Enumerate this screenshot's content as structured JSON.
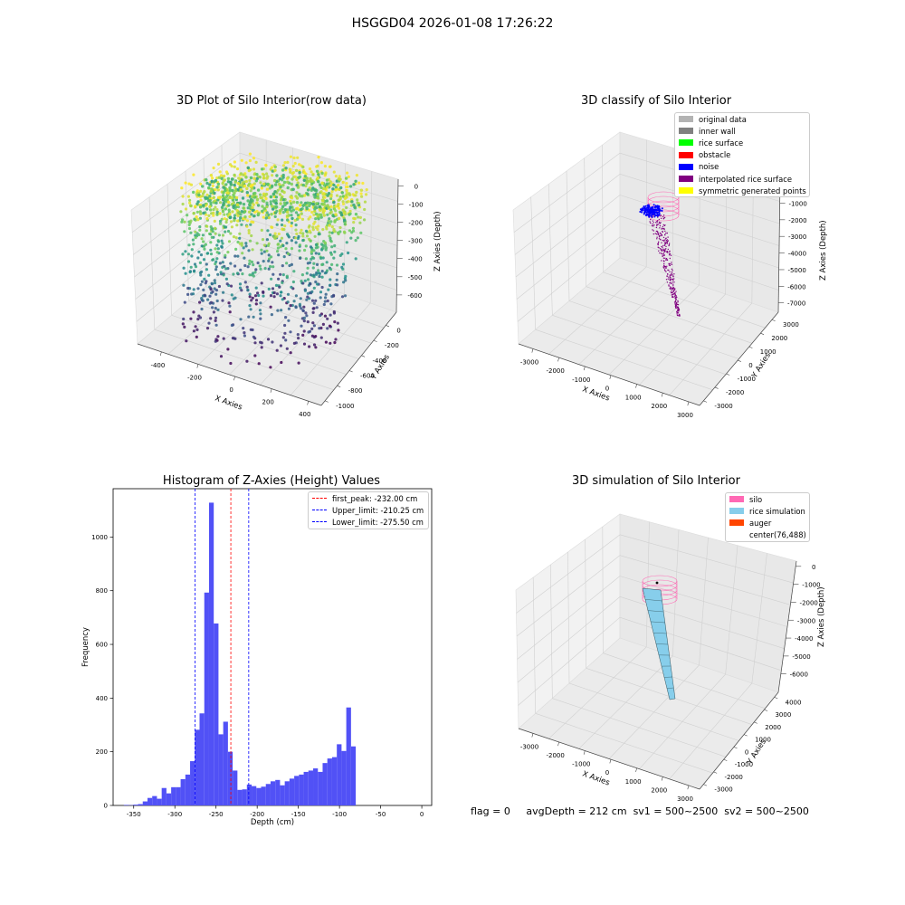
{
  "figure": {
    "suptitle": "HSGGD04 2026-01-08 17:26:22",
    "footer": {
      "flag": "flag = 0",
      "avg_depth": "avgDepth = 212 cm",
      "sv1": "sv1 = 500~2500",
      "sv2": "sv2 = 500~2500"
    }
  },
  "colors": {
    "histogram_bar": "#5151f6",
    "first_peak": "#ff0000",
    "limits": "#0000ff",
    "silo": "#ff69b4",
    "rice_simulation": "#87ceeb",
    "auger": "#ff4500",
    "original_data": "#b3b3b3",
    "inner_wall": "#808080",
    "rice_surface": "#00ff00",
    "obstacle": "#ff0000",
    "noise": "#0000ff",
    "interpolated_rice_surface": "#800080",
    "symmetric_generated_points": "#ffff00"
  },
  "chart_data": [
    {
      "type": "scatter",
      "title": "3D Plot of Silo Interior(row data)",
      "xlabel": "X Axies",
      "ylabel": "Y Axies",
      "zlabel": "Z Axies (Depth)",
      "x_ticks": [
        "-400",
        "-200",
        "0",
        "200",
        "400"
      ],
      "y_ticks": [
        "-1000",
        "-800",
        "-600",
        "-400",
        "-200",
        "0"
      ],
      "z_ticks": [
        "0",
        "-100",
        "-200",
        "-300",
        "-400",
        "-500",
        "-600"
      ],
      "colormap": "viridis"
    },
    {
      "type": "scatter",
      "title": "3D classify of Silo Interior",
      "xlabel": "X Axies",
      "ylabel": "Y Axies",
      "zlabel": "Z Axies (Depth)",
      "x_ticks": [
        "-3000",
        "-2000",
        "-1000",
        "0",
        "1000",
        "2000",
        "3000"
      ],
      "y_ticks": [
        "-3000",
        "-2000",
        "-1000",
        "0",
        "1000",
        "2000",
        "3000"
      ],
      "z_ticks": [
        "-1000",
        "-2000",
        "-3000",
        "-4000",
        "-5000",
        "-6000",
        "-7000"
      ],
      "legend": [
        {
          "label": "original data",
          "color": "#b3b3b3"
        },
        {
          "label": "inner wall",
          "color": "#808080"
        },
        {
          "label": "rice surface",
          "color": "#00ff00"
        },
        {
          "label": "obstacle",
          "color": "#ff0000"
        },
        {
          "label": "noise",
          "color": "#0000ff"
        },
        {
          "label": "interpolated rice surface",
          "color": "#800080"
        },
        {
          "label": "symmetric generated points",
          "color": "#ffff00"
        }
      ]
    },
    {
      "type": "bar",
      "title": "Histogram of Z-Axies (Height) Values",
      "xlabel": "Depth (cm)",
      "ylabel": "Frequency",
      "xlim": [
        -375,
        12
      ],
      "ylim": [
        0,
        1180
      ],
      "x_ticks": [
        -350,
        -300,
        -250,
        -200,
        -150,
        -100,
        -50,
        0
      ],
      "y_ticks": [
        0,
        200,
        400,
        600,
        800,
        1000
      ],
      "bin_width": 5.75,
      "bin_start": -362,
      "values": [
        2,
        1,
        3,
        5,
        15,
        28,
        35,
        25,
        65,
        45,
        68,
        68,
        98,
        115,
        165,
        282,
        343,
        793,
        1128,
        678,
        265,
        312,
        200,
        130,
        58,
        60,
        78,
        72,
        65,
        70,
        80,
        90,
        95,
        75,
        90,
        100,
        110,
        115,
        125,
        130,
        138,
        125,
        158,
        175,
        180,
        228,
        203,
        365,
        220
      ],
      "lines": [
        {
          "label": "first_peak: -232.00 cm",
          "x": -232.0,
          "color": "#ff0000"
        },
        {
          "label": "Upper_limit: -210.25 cm",
          "x": -210.25,
          "color": "#0000ff"
        },
        {
          "label": "Lower_limit: -275.50 cm",
          "x": -275.5,
          "color": "#0000ff"
        }
      ]
    },
    {
      "type": "area",
      "title": "3D simulation of Silo Interior",
      "xlabel": "X Axies",
      "ylabel": "Y Axies",
      "zlabel": "Z Axies (Depth)",
      "x_ticks": [
        "-3000",
        "-2000",
        "-1000",
        "0",
        "1000",
        "2000",
        "3000"
      ],
      "y_ticks": [
        "-3000",
        "-2000",
        "-1000",
        "0",
        "1000",
        "2000",
        "3000",
        "4000"
      ],
      "z_ticks": [
        "0",
        "-1000",
        "-2000",
        "-3000",
        "-4000",
        "-5000",
        "-6000"
      ],
      "legend": [
        {
          "label": "silo",
          "color": "#ff69b4"
        },
        {
          "label": "rice simulation",
          "color": "#87ceeb"
        },
        {
          "label": "auger",
          "color": "#ff4500"
        },
        {
          "label": "center(76,488)",
          "color": ""
        }
      ]
    }
  ]
}
